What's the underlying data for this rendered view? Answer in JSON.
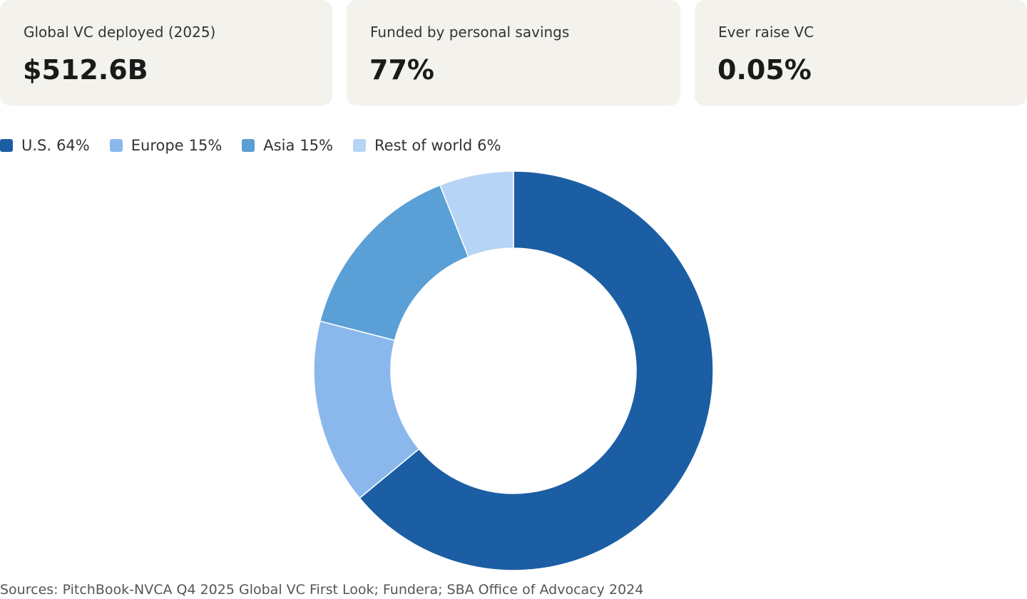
{
  "cards": [
    {
      "label": "Global VC deployed (2025)",
      "value": "$512.6B"
    },
    {
      "label": "Funded by personal savings",
      "value": "77%"
    },
    {
      "label": "Ever raise VC",
      "value": "0.05%"
    }
  ],
  "chart_data": {
    "type": "donut",
    "categories": [
      "U.S.",
      "Europe",
      "Asia",
      "Rest of world"
    ],
    "values": [
      64,
      15,
      15,
      6
    ],
    "value_labels": [
      "64%",
      "15%",
      "15%",
      "6%"
    ],
    "colors": [
      "#1b5ea3",
      "#8ab8ec",
      "#5a9fd5",
      "#b6d4f5"
    ]
  },
  "source": "Sources: PitchBook-NVCA Q4 2025 Global VC First Look; Fundera; SBA Office of Advocacy 2024"
}
